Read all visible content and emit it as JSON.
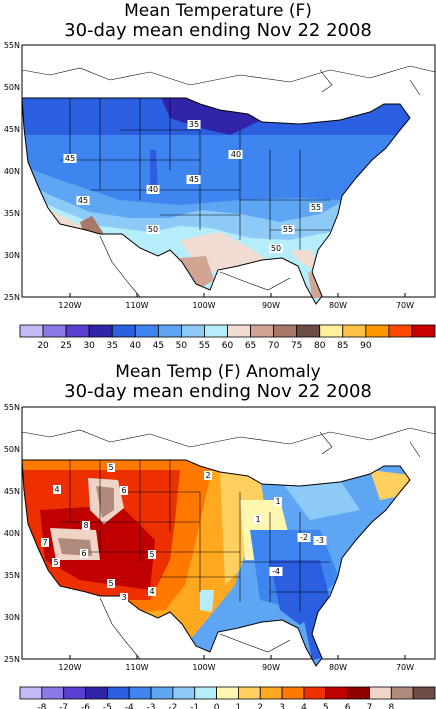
{
  "panel1": {
    "title_line1": "Mean Temperature (F)",
    "title_line2": "30-day mean ending Nov 22 2008",
    "lat_labels": [
      "55N",
      "50N",
      "45N",
      "40N",
      "35N",
      "30N",
      "25N"
    ],
    "lon_labels": [
      "120W",
      "110W",
      "100W",
      "90W",
      "80W",
      "70W"
    ],
    "contour_labels": [
      "35",
      "40",
      "45",
      "40",
      "45",
      "45",
      "50",
      "55",
      "55",
      "50",
      "40",
      "45"
    ],
    "colorbar_colors": [
      "#c6b8f4",
      "#8c78e8",
      "#5a3fd0",
      "#3024a8",
      "#2b5fe0",
      "#3f85f0",
      "#5ea6f4",
      "#8ecaf8",
      "#b5eefa",
      "#f1dcd2",
      "#d2a494",
      "#a87868",
      "#6e4e44",
      "#fff09a",
      "#ffc048",
      "#ff9800",
      "#ff4800",
      "#c80000"
    ],
    "colorbar_labels": [
      "20",
      "25",
      "30",
      "35",
      "40",
      "45",
      "50",
      "55",
      "60",
      "65",
      "70",
      "75",
      "80",
      "85",
      "90"
    ]
  },
  "panel2": {
    "title_line1": "Mean Temp (F) Anomaly",
    "title_line2": "30-day mean ending Nov 22 2008",
    "lat_labels": [
      "55N",
      "50N",
      "45N",
      "40N",
      "35N",
      "30N",
      "25N"
    ],
    "lon_labels": [
      "120W",
      "110W",
      "100W",
      "90W",
      "80W",
      "70W"
    ],
    "contour_labels": [
      "4",
      "5",
      "6",
      "8",
      "7",
      "6",
      "5",
      "5",
      "5",
      "3",
      "4",
      "2",
      "1",
      "1",
      "-2",
      "-3",
      "-4"
    ],
    "colorbar_colors": [
      "#c6b8f4",
      "#8c78e8",
      "#5a3fd0",
      "#3024a8",
      "#2b5fe0",
      "#3f85f0",
      "#5ea6f4",
      "#8ecaf8",
      "#b5eefa",
      "#fff6b0",
      "#ffd060",
      "#ffa820",
      "#ff7800",
      "#ee3000",
      "#c00000",
      "#8e0000",
      "#f0d4c8",
      "#b08a7a",
      "#6e4e44"
    ],
    "colorbar_labels": [
      "-8",
      "-7",
      "-6",
      "-5",
      "-4",
      "-3",
      "-2",
      "-1",
      "0",
      "1",
      "2",
      "3",
      "4",
      "5",
      "6",
      "7",
      "8"
    ]
  }
}
